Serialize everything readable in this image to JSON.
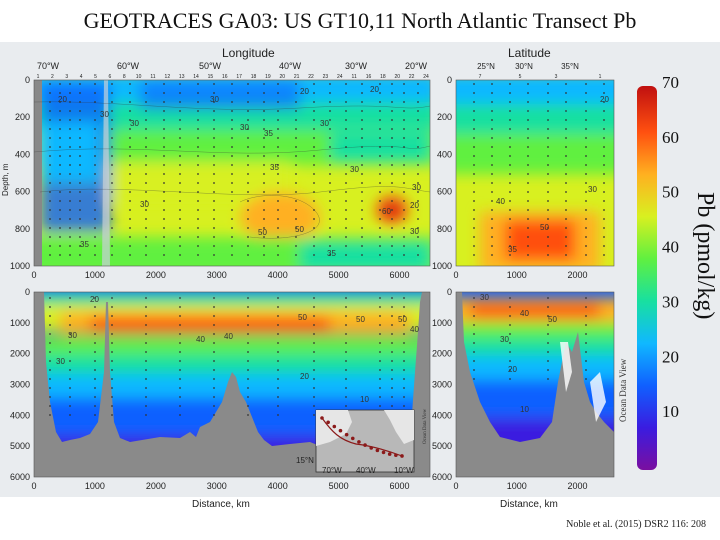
{
  "slide": {
    "title": "GEOTRACES GA03: US GT10,11 North Atlantic Transect Pb",
    "citation": "Noble et al. (2015) DSR2 116: 208"
  },
  "chart_data": {
    "type": "heatmap",
    "title": "GEOTRACES GA03: US GT10,11 North Atlantic Transect Pb",
    "colorbar": {
      "label": "Pb (pmol/kg)",
      "ticks": [
        10,
        20,
        30,
        40,
        50,
        60,
        70
      ],
      "range": [
        0,
        70
      ],
      "watermark": "Ocean Data View",
      "colors": [
        "#7a0fa0",
        "#3a1ce0",
        "#1060ff",
        "#10b8ff",
        "#18e0a0",
        "#60f040",
        "#d8f020",
        "#ffb020",
        "#ff5010",
        "#c01010"
      ]
    },
    "panels": {
      "upper_left": {
        "top_axis_label": "Longitude",
        "top_ticks": [
          "70°W",
          "60°W",
          "50°W",
          "40°W",
          "30°W",
          "20°W"
        ],
        "station_numbers": [
          "1",
          "2",
          "3",
          "4",
          "5",
          "6",
          "8",
          "10",
          "11",
          "12",
          "13",
          "14",
          "15",
          "16",
          "17",
          "18",
          "19",
          "20",
          "21",
          "22",
          "23",
          "24",
          "11",
          "16",
          "18",
          "20",
          "22",
          "24"
        ],
        "y_label": "Depth, m",
        "y_ticks": [
          0,
          200,
          400,
          600,
          800,
          1000
        ],
        "x_ticks": [
          0,
          1000,
          2000,
          3000,
          4000,
          5000,
          6000
        ],
        "contour_labels": [
          "20",
          "30",
          "30",
          "30",
          "30",
          "35",
          "30",
          "20",
          "30",
          "35",
          "30",
          "50",
          "35",
          "20",
          "60",
          "50",
          "30",
          "30",
          "35",
          "20"
        ]
      },
      "upper_right": {
        "top_axis_label": "Latitude",
        "top_ticks": [
          "25°N",
          "30°N",
          "35°N"
        ],
        "station_numbers": [
          "7",
          "5",
          "3",
          "1"
        ],
        "y_ticks": [
          0,
          200,
          400,
          600,
          800,
          1000
        ],
        "x_ticks": [
          0,
          1000,
          2000
        ],
        "contour_labels": [
          "30",
          "40",
          "50",
          "35",
          "20"
        ]
      },
      "lower_left": {
        "y_ticks": [
          0,
          1000,
          2000,
          3000,
          4000,
          5000,
          6000
        ],
        "x_ticks": [
          0,
          1000,
          2000,
          3000,
          4000,
          5000,
          6000
        ],
        "x_label": "Distance, km",
        "contour_labels": [
          "20",
          "30",
          "40",
          "50",
          "40",
          "20",
          "30",
          "50",
          "50",
          "40",
          "10"
        ]
      },
      "lower_right": {
        "y_ticks": [
          0,
          1000,
          2000,
          3000,
          4000,
          5000,
          6000
        ],
        "x_ticks": [
          0,
          1000,
          2000
        ],
        "x_label": "Distance, km",
        "contour_labels": [
          "30",
          "40",
          "50",
          "30",
          "20",
          "10"
        ]
      },
      "inset_map": {
        "lat_labels": [
          "15°N"
        ],
        "lon_labels": [
          "70°W",
          "40°W",
          "10°W"
        ],
        "watermark": "Ocean Data View"
      }
    }
  }
}
